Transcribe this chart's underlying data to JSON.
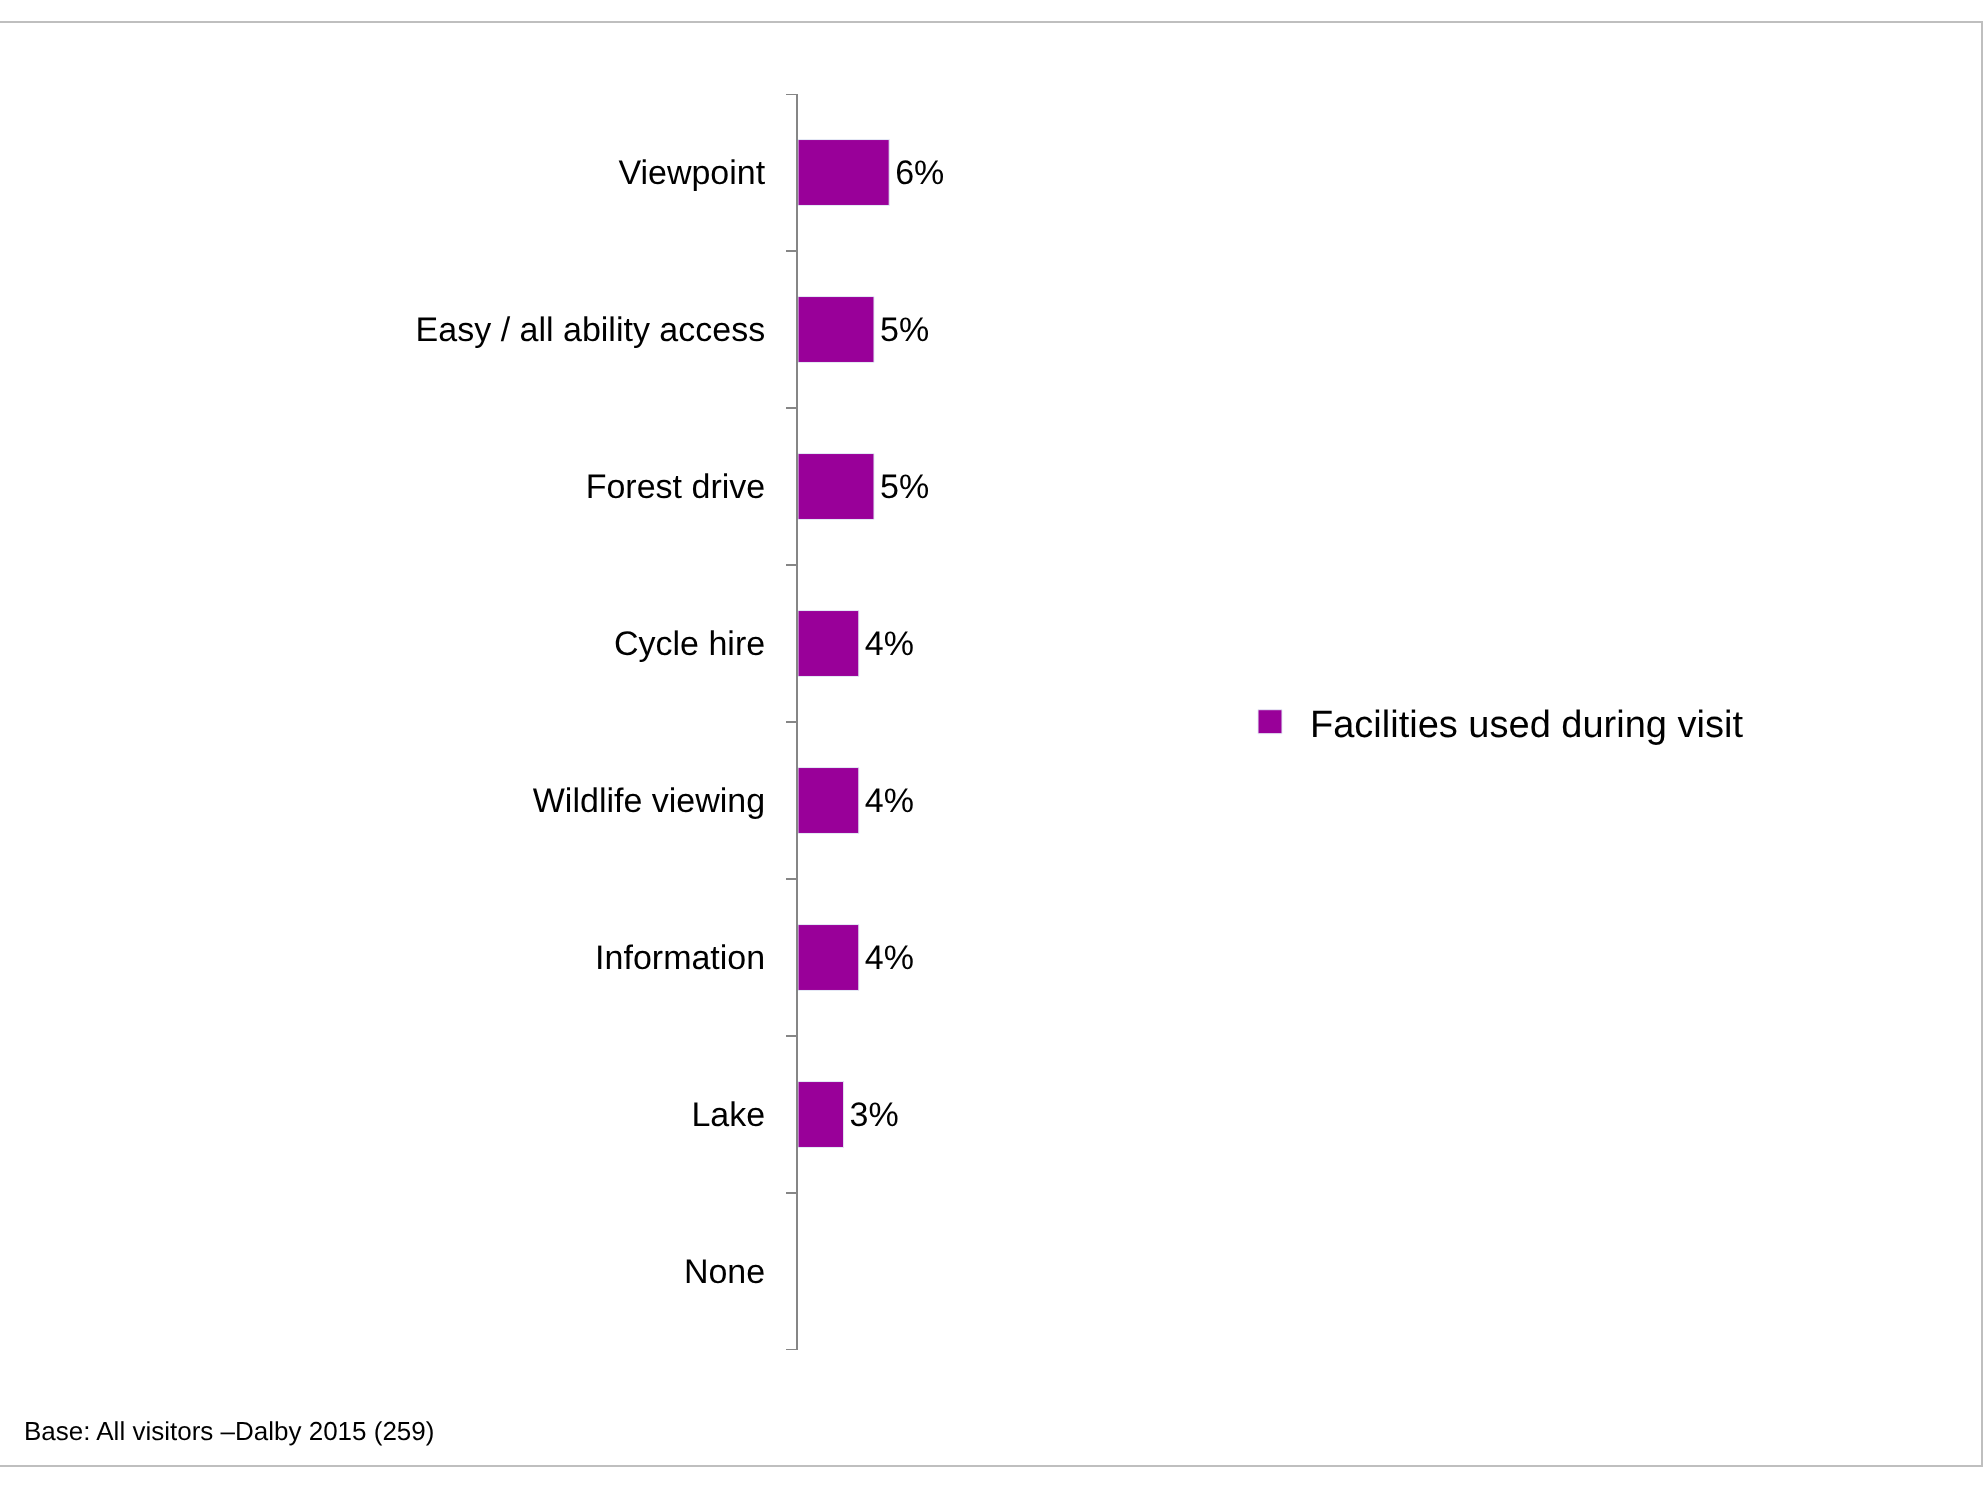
{
  "chart_data": {
    "type": "bar",
    "orientation": "horizontal",
    "categories": [
      "Viewpoint",
      "Easy / all ability access",
      "Forest drive",
      "Cycle hire",
      "Wildlife viewing",
      "Information",
      "Lake",
      "None"
    ],
    "series": [
      {
        "name": "Facilities used during visit",
        "color": "#990099",
        "values": [
          6,
          5,
          5,
          4,
          4,
          4,
          3,
          null
        ],
        "value_labels": [
          "6%",
          "5%",
          "5%",
          "4%",
          "4%",
          "4%",
          "3%",
          null
        ]
      }
    ],
    "legend": "right",
    "annotations": [
      "Base: All visitors –Dalby 2015 (259)"
    ]
  }
}
